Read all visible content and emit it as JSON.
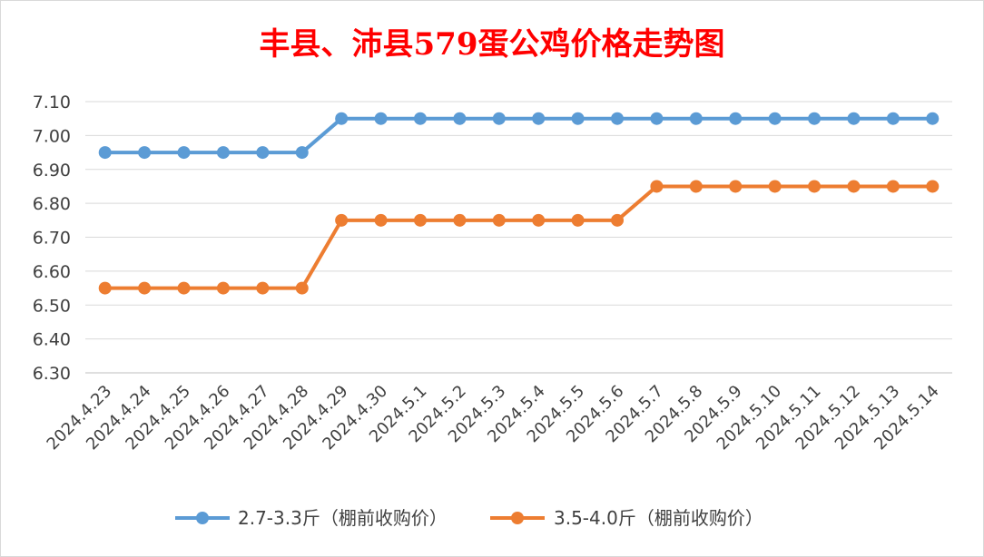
{
  "chart_data": {
    "type": "line",
    "title": "丰县、沛县579蛋公鸡价格走势图",
    "xlabel": "",
    "ylabel": "",
    "ylim": [
      6.3,
      7.1
    ],
    "yticks": [
      "7.10",
      "7.00",
      "6.90",
      "6.80",
      "6.70",
      "6.60",
      "6.50",
      "6.40",
      "6.30"
    ],
    "grid": true,
    "legend_position": "bottom",
    "categories": [
      "2024.4.23",
      "2024.4.24",
      "2024.4.25",
      "2024.4.26",
      "2024.4.27",
      "2024.4.28",
      "2024.4.29",
      "2024.4.30",
      "2024.5.1",
      "2024.5.2",
      "2024.5.3",
      "2024.5.4",
      "2024.5.5",
      "2024.5.6",
      "2024.5.7",
      "2024.5.8",
      "2024.5.9",
      "2024.5.10",
      "2024.5.11",
      "2024.5.12",
      "2024.5.13",
      "2024.5.14"
    ],
    "series": [
      {
        "name": "2.7-3.3斤（棚前收购价）",
        "color": "#5b9bd5",
        "values": [
          6.95,
          6.95,
          6.95,
          6.95,
          6.95,
          6.95,
          7.05,
          7.05,
          7.05,
          7.05,
          7.05,
          7.05,
          7.05,
          7.05,
          7.05,
          7.05,
          7.05,
          7.05,
          7.05,
          7.05,
          7.05,
          7.05
        ]
      },
      {
        "name": "3.5-4.0斤（棚前收购价）",
        "color": "#ed7d31",
        "values": [
          6.55,
          6.55,
          6.55,
          6.55,
          6.55,
          6.55,
          6.75,
          6.75,
          6.75,
          6.75,
          6.75,
          6.75,
          6.75,
          6.75,
          6.85,
          6.85,
          6.85,
          6.85,
          6.85,
          6.85,
          6.85,
          6.85
        ]
      }
    ]
  }
}
